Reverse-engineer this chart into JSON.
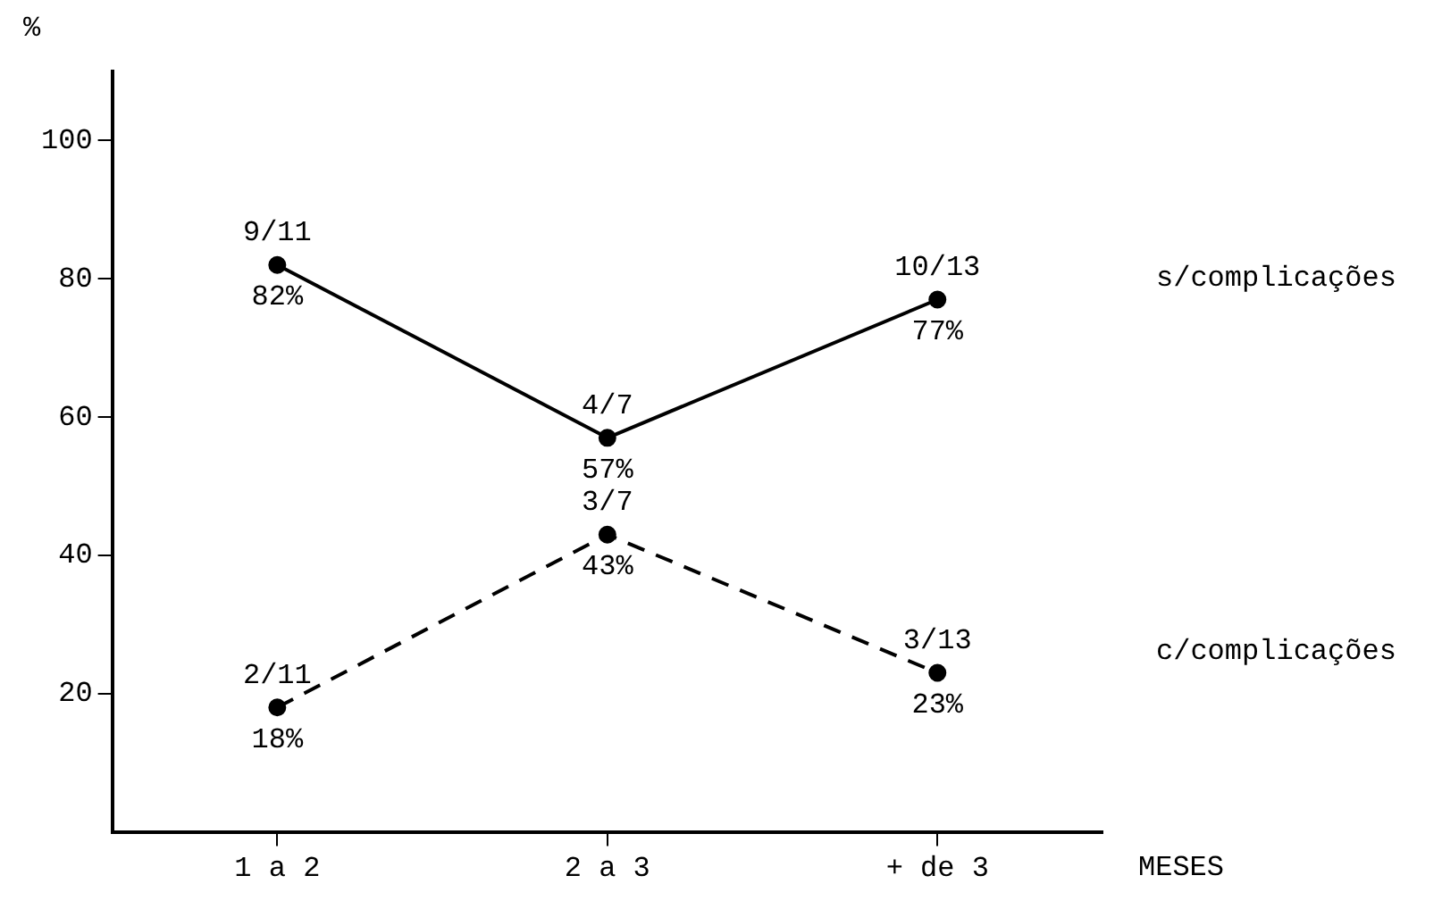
{
  "chart_data": {
    "type": "line",
    "ylabel": "%",
    "xlabel": "MESES",
    "categories": [
      "1 a 2",
      "2 a 3",
      "+ de 3"
    ],
    "series": [
      {
        "name": "s/complicações",
        "color": "#000000",
        "line_style": "solid",
        "values": [
          82,
          57,
          77
        ],
        "value_labels": [
          "82%",
          "57%",
          "77%"
        ]
      },
      {
        "name": "c/complicações",
        "color": "#000000",
        "line_style": "dashed",
        "values": [
          18,
          43,
          23
        ],
        "value_labels": [
          "18%",
          "43%",
          "23%"
        ]
      }
    ],
    "annotations": [
      {
        "text": "9/11",
        "x": "1 a 2",
        "y": 82
      },
      {
        "text": "4/7",
        "x": "2 a 3",
        "y": 57
      },
      {
        "text": "10/13",
        "x": "+ de 3",
        "y": 77
      },
      {
        "text": "2/11",
        "x": "1 a 2",
        "y": 18
      },
      {
        "text": "3/7",
        "x": "2 a 3",
        "y": 43
      },
      {
        "text": "3/13",
        "x": "+ de 3",
        "y": 23
      }
    ],
    "ylim": [
      0,
      110
    ],
    "yticks": [
      20,
      40,
      60,
      80,
      100
    ],
    "grid": false,
    "legend": false,
    "marker": "circle"
  }
}
